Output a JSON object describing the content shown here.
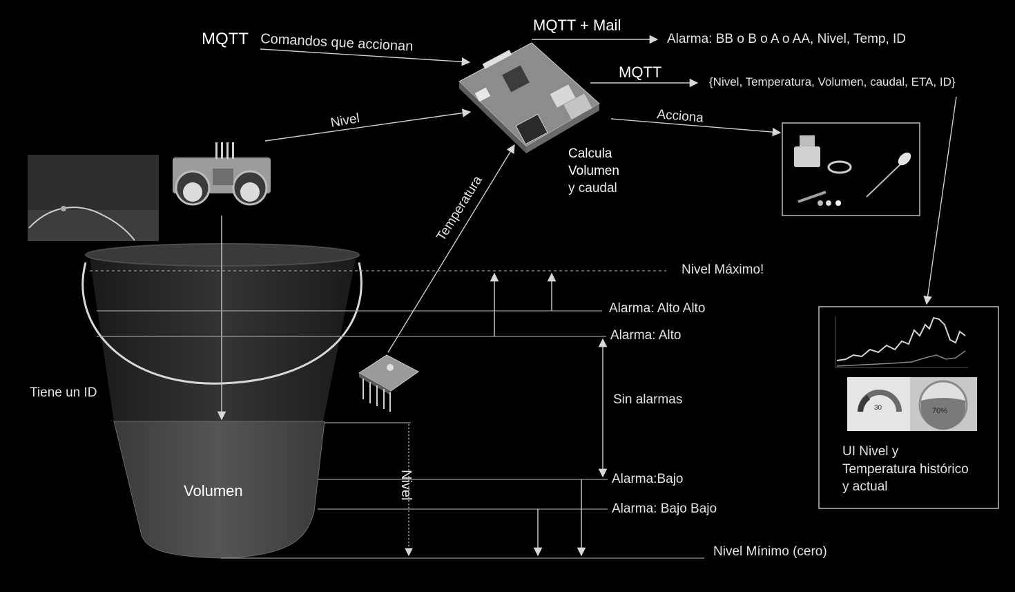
{
  "labels": {
    "mqtt_in": "MQTT",
    "commands": "Comandos que accionan",
    "mqtt_mail": "MQTT + Mail",
    "alarm_msg": "Alarma: BB o B o A o AA, Nivel,  Temp,  ID",
    "mqtt_out": "MQTT",
    "payload": "{Nivel, Temperatura, Volumen, caudal, ETA, ID}",
    "nivel_arrow": "Nivel",
    "acciona": "Acciona",
    "calc_line1": "Calcula",
    "calc_line2": "Volumen",
    "calc_line3": "y caudal",
    "temperatura": "Temperatura",
    "nivel_maximo": "Nivel Máximo!",
    "alarma_alto_alto": "Alarma: Alto Alto",
    "alarma_alto": "Alarma: Alto",
    "sin_alarmas": "Sin alarmas",
    "alarma_bajo": "Alarma:Bajo",
    "alarma_bajo_bajo": "Alarma: Bajo Bajo",
    "nivel_minimo": "Nivel Mínimo (cero)",
    "tiene_id": "Tiene un ID",
    "volumen": "Volumen",
    "nivel_vertical": "Nivel",
    "ui_line1": "UI Nivel y",
    "ui_line2": "Temperatura histórico",
    "ui_line3": "y actual",
    "gauge_value": "30",
    "tank_value": "70%"
  },
  "colors": {
    "background": "#000000",
    "text": "#e4e4e4",
    "line": "#cfcfcf",
    "bucket": "#2b2b2b",
    "water": "#4a4a4a"
  },
  "icons": {
    "controller": "single-board-computer-icon",
    "ultrasonic": "ultrasonic-sensor-icon",
    "temp_sensor": "temperature-sensor-icon",
    "actuators": "servo-led-actuators-icon",
    "dashboard": "dashboard-chart-icon",
    "photo": "cable-photo-icon"
  }
}
